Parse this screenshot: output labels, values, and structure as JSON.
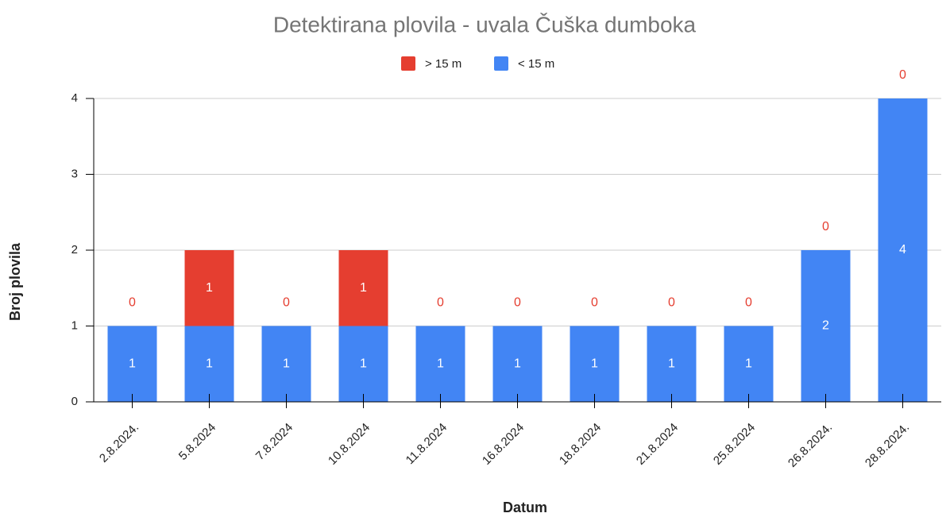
{
  "chart_data": {
    "type": "stacked_bar",
    "title": "Detektirana plovila - uvala Čuška dumboka",
    "x_label": "Datum",
    "y_label": "Broj plovila",
    "categories": [
      "2.8.2024.",
      "5.8.2024",
      "7.8.2024",
      "10.8.2024",
      "11.8.2024",
      "16.8.2024",
      "18.8.2024",
      "21.8.2024",
      "25.8.2024",
      "26.8.2024.",
      "28.8.2024."
    ],
    "series": [
      {
        "name": "> 15 m",
        "color": "#e53e30",
        "values": [
          0,
          1,
          0,
          1,
          0,
          0,
          0,
          0,
          0,
          0,
          0
        ]
      },
      {
        "name": "< 15 m",
        "color": "#4285f4",
        "values": [
          1,
          1,
          1,
          1,
          1,
          1,
          1,
          1,
          1,
          2,
          4
        ]
      }
    ],
    "ylim": [
      0,
      4
    ],
    "yticks": [
      0,
      1,
      2,
      3,
      4
    ],
    "grid": true,
    "legend": "top"
  }
}
